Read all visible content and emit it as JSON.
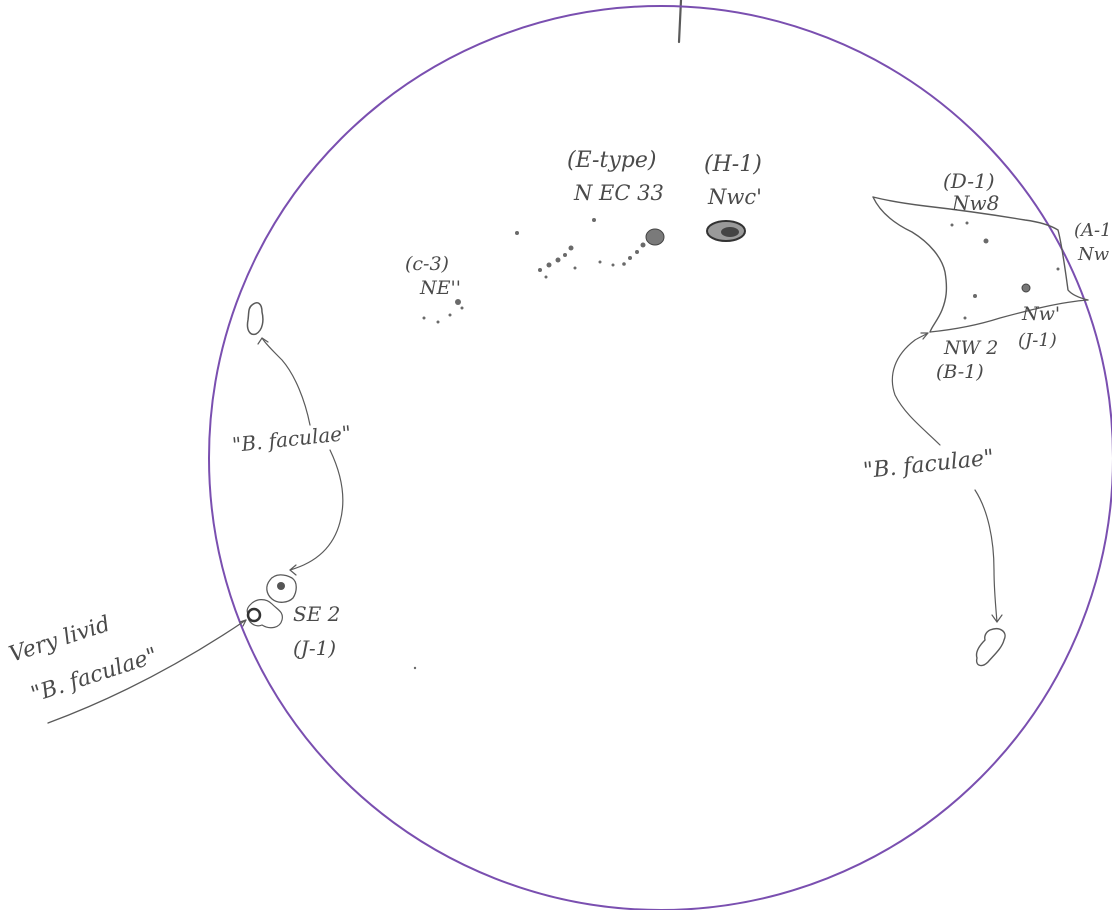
{
  "colors": {
    "disc_outline": "#7a4fb0",
    "pencil": "#5a5a5a",
    "paper": "#ffffff"
  },
  "labels": {
    "e_type_class": "(E-type)",
    "e_type_region": "N EC 33",
    "h1_class": "(H-1)",
    "h1_region": "Nwc'",
    "c3_class": "(c-3)",
    "c3_region": "NE''",
    "d1_class": "(D-1)",
    "d1_region": "Nw8",
    "a1_class": "(A-1",
    "a1_region": "Nw",
    "nw2_region": "NW 2",
    "nw2_class": "(B-1)",
    "nw1_region": "Nw'",
    "nw1_class": "(J-1)",
    "se2_region": "SE 2",
    "se2_class": "(J-1)",
    "faculae_left": "\"B. faculae\"",
    "faculae_right": "\"B. faculae\"",
    "livid_line1": "Very livid",
    "livid_line2": "\"B. faculae\""
  }
}
